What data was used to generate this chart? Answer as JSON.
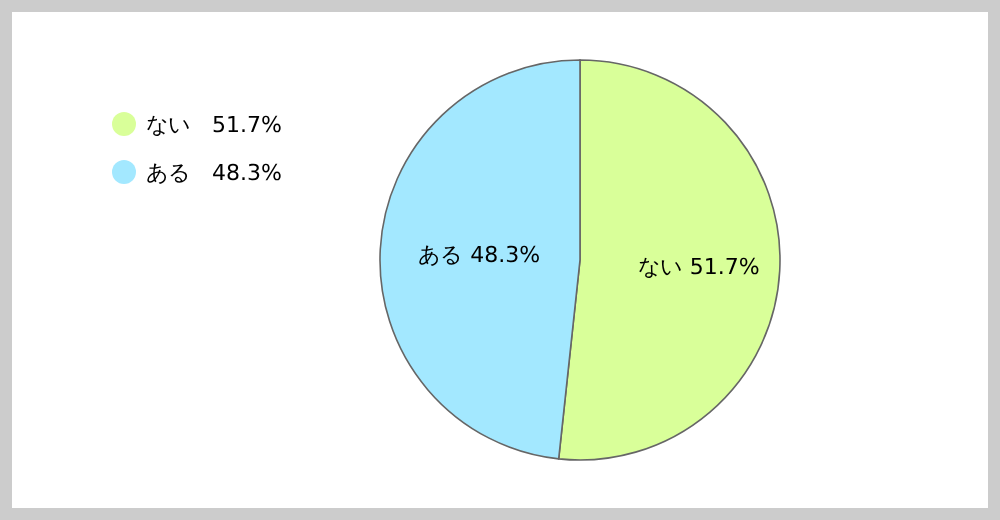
{
  "chart_data": {
    "type": "pie",
    "categories": [
      "ない",
      "ある"
    ],
    "values": [
      51.7,
      48.3
    ],
    "value_labels": [
      "51.7%",
      "48.3%"
    ],
    "colors": [
      "#d9ff99",
      "#a3e8ff"
    ],
    "legend": "top left"
  }
}
